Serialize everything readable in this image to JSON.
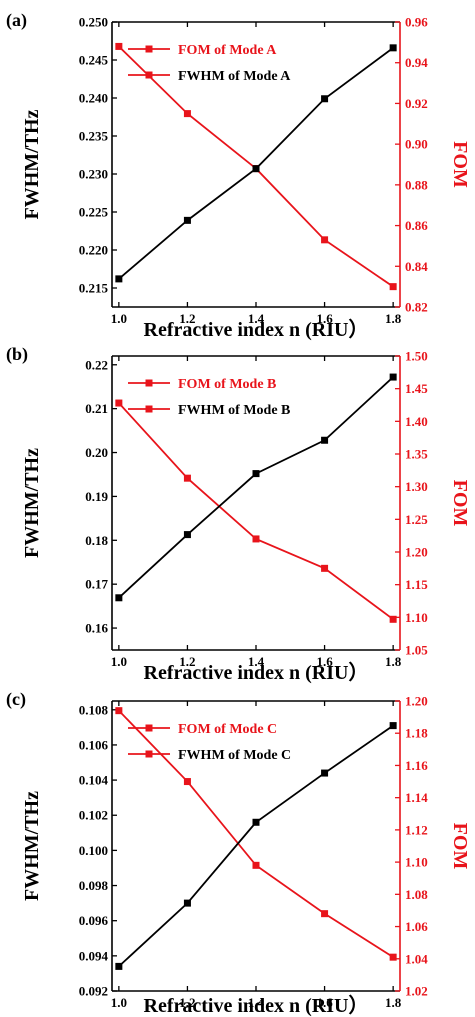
{
  "colors": {
    "left_axis": "#000000",
    "right_axis": "#e8141b",
    "fwhm_series": "#000000",
    "fom_series": "#e8141b"
  },
  "chart_data": [
    {
      "type": "line",
      "panel_label": "(a)",
      "xlabel": "Refractive index n (RIU）",
      "ylabel_left": "FWHM/THz",
      "ylabel_right": "FOM",
      "xlim": [
        0.98,
        1.82
      ],
      "xticks": [
        "1.0",
        "1.2",
        "1.4",
        "1.6",
        "1.8"
      ],
      "x": [
        1.0,
        1.2,
        1.4,
        1.6,
        1.8
      ],
      "ylim_left": [
        0.2125,
        0.25
      ],
      "yticks_left": [
        "0.215",
        "0.220",
        "0.225",
        "0.230",
        "0.235",
        "0.240",
        "0.245",
        "0.250"
      ],
      "ylim_right": [
        0.82,
        0.96
      ],
      "yticks_right": [
        "0.82",
        "0.84",
        "0.86",
        "0.88",
        "0.90",
        "0.92",
        "0.94",
        "0.96"
      ],
      "legend_position": "top-left",
      "series": [
        {
          "name": "FOM of Mode A",
          "axis": "right",
          "values": [
            0.948,
            0.915,
            0.888,
            0.853,
            0.83
          ]
        },
        {
          "name": "FWHM of Mode A",
          "axis": "left",
          "values": [
            0.2162,
            0.2239,
            0.2307,
            0.2399,
            0.2466
          ]
        }
      ]
    },
    {
      "type": "line",
      "panel_label": "(b)",
      "xlabel": "Refractive index n (RIU）",
      "ylabel_left": "FWHM/THz",
      "ylabel_right": "FOM",
      "xlim": [
        0.98,
        1.82
      ],
      "xticks": [
        "1.0",
        "1.2",
        "1.4",
        "1.6",
        "1.8"
      ],
      "x": [
        1.0,
        1.2,
        1.4,
        1.6,
        1.8
      ],
      "ylim_left": [
        0.155,
        0.222
      ],
      "yticks_left": [
        "0.16",
        "0.17",
        "0.18",
        "0.19",
        "0.20",
        "0.21",
        "0.22"
      ],
      "ylim_right": [
        1.05,
        1.5
      ],
      "yticks_right": [
        "1.05",
        "1.10",
        "1.15",
        "1.20",
        "1.25",
        "1.30",
        "1.35",
        "1.40",
        "1.45",
        "1.50"
      ],
      "legend_position": "top-left",
      "series": [
        {
          "name": "FOM of Mode B",
          "axis": "right",
          "values": [
            1.428,
            1.313,
            1.22,
            1.175,
            1.097
          ]
        },
        {
          "name": "FWHM of Mode B",
          "axis": "left",
          "values": [
            0.1669,
            0.1813,
            0.1952,
            0.2028,
            0.2172
          ]
        }
      ]
    },
    {
      "type": "line",
      "panel_label": "(c)",
      "xlabel": "Refractive index n (RIU）",
      "ylabel_left": "FWHM/THz",
      "ylabel_right": "FOM",
      "xlim": [
        0.98,
        1.82
      ],
      "xticks": [
        "1.0",
        "1.2",
        "1.4",
        "1.6",
        "1.8"
      ],
      "x": [
        1.0,
        1.2,
        1.4,
        1.6,
        1.8
      ],
      "ylim_left": [
        0.092,
        0.1085
      ],
      "yticks_left": [
        "0.092",
        "0.094",
        "0.096",
        "0.098",
        "0.100",
        "0.102",
        "0.104",
        "0.106",
        "0.108"
      ],
      "ylim_right": [
        1.02,
        1.2
      ],
      "yticks_right": [
        "1.02",
        "1.04",
        "1.06",
        "1.08",
        "1.10",
        "1.12",
        "1.14",
        "1.16",
        "1.18",
        "1.20"
      ],
      "legend_position": "top-left",
      "series": [
        {
          "name": "FOM of Mode C",
          "axis": "right",
          "values": [
            1.194,
            1.15,
            1.098,
            1.068,
            1.041
          ]
        },
        {
          "name": "FWHM of Mode C",
          "axis": "left",
          "values": [
            0.0934,
            0.097,
            0.1016,
            0.1044,
            0.1071
          ]
        }
      ]
    }
  ]
}
